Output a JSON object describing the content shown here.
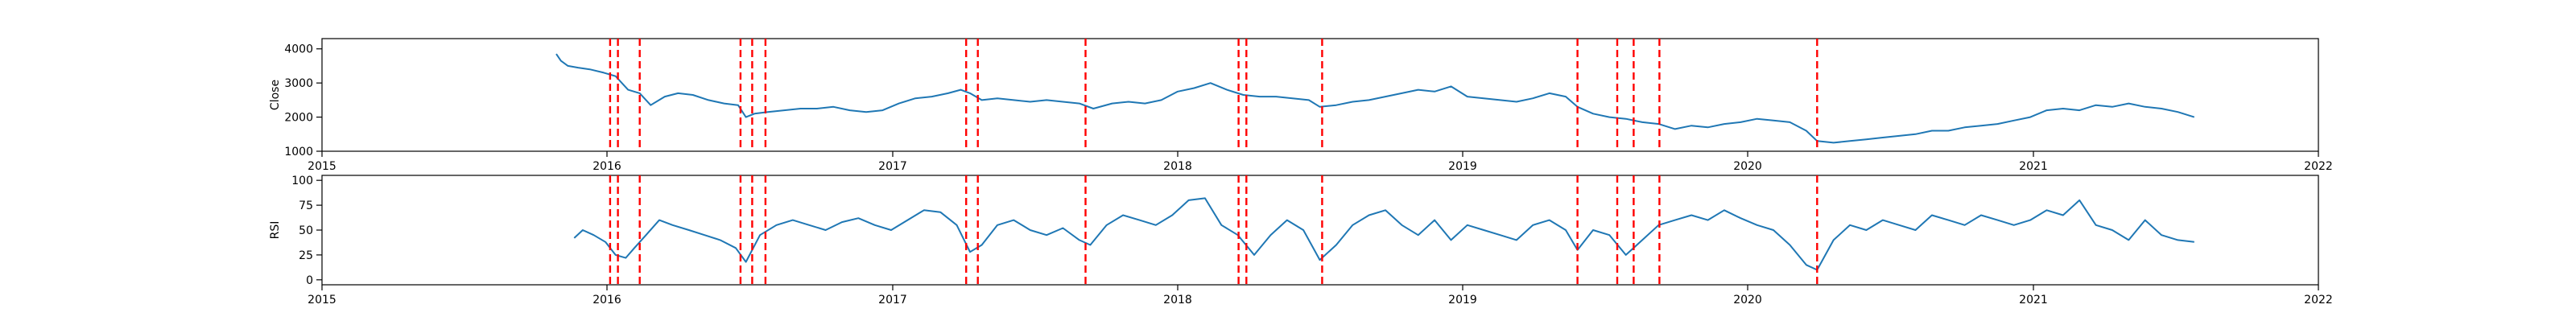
{
  "chart_data": [
    {
      "type": "line",
      "ylabel": "Close",
      "xlim": [
        "2015-01-01",
        "2022-01-01"
      ],
      "ylim": [
        1000,
        4300
      ],
      "yticks": [
        1000,
        2000,
        3000,
        4000
      ],
      "ytick_labels": [
        "1000",
        "2000",
        "3000",
        "4000"
      ],
      "xticks": [
        "2015-01-01",
        "2016-01-01",
        "2017-01-01",
        "2018-01-01",
        "2019-01-01",
        "2020-01-01",
        "2021-01-01",
        "2022-01-01"
      ],
      "xtick_labels": [
        "2015",
        "2016",
        "2017",
        "2018",
        "2019",
        "2020",
        "2021",
        "2022"
      ],
      "grid": false,
      "line_color": "#1f77b4",
      "series": [
        {
          "x": [
            "2015-10-28",
            "2015-11-03",
            "2015-11-12",
            "2015-11-25",
            "2015-12-10",
            "2015-12-28",
            "2016-01-12",
            "2016-01-28",
            "2016-02-12",
            "2016-02-26",
            "2016-03-15",
            "2016-04-01",
            "2016-04-20",
            "2016-05-10",
            "2016-05-30",
            "2016-06-17",
            "2016-06-27",
            "2016-07-08",
            "2016-07-25",
            "2016-08-15",
            "2016-09-05",
            "2016-09-26",
            "2016-10-17",
            "2016-11-07",
            "2016-11-28",
            "2016-12-19",
            "2017-01-09",
            "2017-01-30",
            "2017-02-20",
            "2017-03-13",
            "2017-03-29",
            "2017-04-10",
            "2017-04-25",
            "2017-05-15",
            "2017-06-05",
            "2017-06-26",
            "2017-07-17",
            "2017-08-07",
            "2017-08-28",
            "2017-09-15",
            "2017-10-09",
            "2017-10-30",
            "2017-11-20",
            "2017-12-11",
            "2018-01-01",
            "2018-01-22",
            "2018-02-12",
            "2018-03-05",
            "2018-03-26",
            "2018-04-16",
            "2018-05-07",
            "2018-05-28",
            "2018-06-18",
            "2018-07-02",
            "2018-07-23",
            "2018-08-13",
            "2018-09-03",
            "2018-09-24",
            "2018-10-15",
            "2018-11-05",
            "2018-11-26",
            "2018-12-17",
            "2019-01-07",
            "2019-01-28",
            "2019-02-18",
            "2019-03-11",
            "2019-04-01",
            "2019-04-22",
            "2019-05-13",
            "2019-05-28",
            "2019-06-17",
            "2019-07-08",
            "2019-07-29",
            "2019-08-19",
            "2019-09-09",
            "2019-09-30",
            "2019-10-21",
            "2019-11-11",
            "2019-12-02",
            "2019-12-23",
            "2020-01-13",
            "2020-02-03",
            "2020-02-24",
            "2020-03-16",
            "2020-03-30",
            "2020-04-20",
            "2020-05-11",
            "2020-06-01",
            "2020-06-22",
            "2020-07-13",
            "2020-08-03",
            "2020-08-24",
            "2020-09-14",
            "2020-10-05",
            "2020-10-26",
            "2020-11-16",
            "2020-12-07",
            "2020-12-28",
            "2021-01-18",
            "2021-02-08",
            "2021-03-01",
            "2021-03-22",
            "2021-04-12",
            "2021-05-03",
            "2021-05-24",
            "2021-06-14",
            "2021-07-05",
            "2021-07-26"
          ],
          "y": [
            3850,
            3650,
            3500,
            3450,
            3400,
            3300,
            3200,
            2800,
            2700,
            2350,
            2600,
            2700,
            2650,
            2500,
            2400,
            2350,
            2000,
            2100,
            2150,
            2200,
            2250,
            2250,
            2300,
            2200,
            2150,
            2200,
            2400,
            2550,
            2600,
            2700,
            2800,
            2700,
            2500,
            2550,
            2500,
            2450,
            2500,
            2450,
            2400,
            2250,
            2400,
            2450,
            2400,
            2500,
            2750,
            2850,
            3000,
            2800,
            2650,
            2600,
            2600,
            2550,
            2500,
            2300,
            2350,
            2450,
            2500,
            2600,
            2700,
            2800,
            2750,
            2900,
            2600,
            2550,
            2500,
            2450,
            2550,
            2700,
            2600,
            2300,
            2100,
            2000,
            1950,
            1850,
            1800,
            1650,
            1750,
            1700,
            1800,
            1850,
            1950,
            1900,
            1850,
            1600,
            1300,
            1250,
            1300,
            1350,
            1400,
            1450,
            1500,
            1600,
            1600,
            1700,
            1750,
            1800,
            1900,
            2000,
            2200,
            2250,
            2200,
            2350,
            2300,
            2400,
            2300,
            2250,
            2150,
            2000
          ]
        }
      ]
    },
    {
      "type": "line",
      "ylabel": "RSI",
      "xlim": [
        "2015-01-01",
        "2022-01-01"
      ],
      "ylim": [
        -5,
        105
      ],
      "yticks": [
        0,
        25,
        50,
        75,
        100
      ],
      "ytick_labels": [
        "0",
        "25",
        "50",
        "75",
        "100"
      ],
      "xticks": [
        "2015-01-01",
        "2016-01-01",
        "2017-01-01",
        "2018-01-01",
        "2019-01-01",
        "2020-01-01",
        "2021-01-01",
        "2022-01-01"
      ],
      "xtick_labels": [
        "2015",
        "2016",
        "2017",
        "2018",
        "2019",
        "2020",
        "2021",
        "2022"
      ],
      "grid": false,
      "line_color": "#1f77b4",
      "series": [
        {
          "x": [
            "2015-11-20",
            "2015-12-01",
            "2015-12-15",
            "2015-12-30",
            "2016-01-12",
            "2016-01-25",
            "2016-02-05",
            "2016-02-20",
            "2016-03-08",
            "2016-03-25",
            "2016-04-15",
            "2016-05-05",
            "2016-05-25",
            "2016-06-14",
            "2016-06-27",
            "2016-07-15",
            "2016-08-05",
            "2016-08-26",
            "2016-09-16",
            "2016-10-07",
            "2016-10-28",
            "2016-11-18",
            "2016-12-09",
            "2016-12-30",
            "2017-01-20",
            "2017-02-10",
            "2017-03-03",
            "2017-03-24",
            "2017-04-10",
            "2017-04-25",
            "2017-05-15",
            "2017-06-05",
            "2017-06-26",
            "2017-07-17",
            "2017-08-07",
            "2017-08-28",
            "2017-09-11",
            "2017-10-02",
            "2017-10-23",
            "2017-11-13",
            "2017-12-04",
            "2017-12-25",
            "2018-01-15",
            "2018-02-05",
            "2018-02-26",
            "2018-03-19",
            "2018-04-09",
            "2018-04-30",
            "2018-05-21",
            "2018-06-11",
            "2018-07-02",
            "2018-07-23",
            "2018-08-13",
            "2018-09-03",
            "2018-09-24",
            "2018-10-15",
            "2018-11-05",
            "2018-11-26",
            "2018-12-17",
            "2019-01-07",
            "2019-01-28",
            "2019-02-18",
            "2019-03-11",
            "2019-04-01",
            "2019-04-22",
            "2019-05-13",
            "2019-05-28",
            "2019-06-17",
            "2019-07-08",
            "2019-07-29",
            "2019-08-19",
            "2019-09-09",
            "2019-09-30",
            "2019-10-21",
            "2019-11-11",
            "2019-12-02",
            "2019-12-23",
            "2020-01-13",
            "2020-02-03",
            "2020-02-24",
            "2020-03-16",
            "2020-03-30",
            "2020-04-20",
            "2020-05-11",
            "2020-06-01",
            "2020-06-22",
            "2020-07-13",
            "2020-08-03",
            "2020-08-24",
            "2020-09-14",
            "2020-10-05",
            "2020-10-26",
            "2020-11-16",
            "2020-12-07",
            "2020-12-28",
            "2021-01-18",
            "2021-02-08",
            "2021-03-01",
            "2021-03-22",
            "2021-04-12",
            "2021-05-03",
            "2021-05-24",
            "2021-06-14",
            "2021-07-05",
            "2021-07-26"
          ],
          "y": [
            42,
            50,
            45,
            38,
            25,
            22,
            32,
            45,
            60,
            55,
            50,
            45,
            40,
            32,
            18,
            45,
            55,
            60,
            55,
            50,
            58,
            62,
            55,
            50,
            60,
            70,
            68,
            55,
            28,
            35,
            55,
            60,
            50,
            45,
            52,
            40,
            35,
            55,
            65,
            60,
            55,
            65,
            80,
            82,
            55,
            45,
            25,
            45,
            60,
            50,
            20,
            35,
            55,
            65,
            70,
            55,
            45,
            60,
            40,
            55,
            50,
            45,
            40,
            55,
            60,
            50,
            30,
            50,
            45,
            25,
            40,
            55,
            60,
            65,
            60,
            70,
            62,
            55,
            50,
            35,
            15,
            10,
            40,
            55,
            50,
            60,
            55,
            50,
            65,
            60,
            55,
            65,
            60,
            55,
            60,
            70,
            65,
            80,
            55,
            50,
            40,
            60,
            45,
            40,
            38
          ]
        }
      ]
    }
  ],
  "event_dates": [
    "2016-01-05",
    "2016-01-15",
    "2016-02-12",
    "2016-06-20",
    "2016-07-05",
    "2016-07-22",
    "2017-04-05",
    "2017-04-20",
    "2017-09-05",
    "2018-03-20",
    "2018-03-30",
    "2018-07-05",
    "2019-05-28",
    "2019-07-18",
    "2019-08-08",
    "2019-09-10",
    "2020-03-30"
  ],
  "event_color": "#ff0000"
}
